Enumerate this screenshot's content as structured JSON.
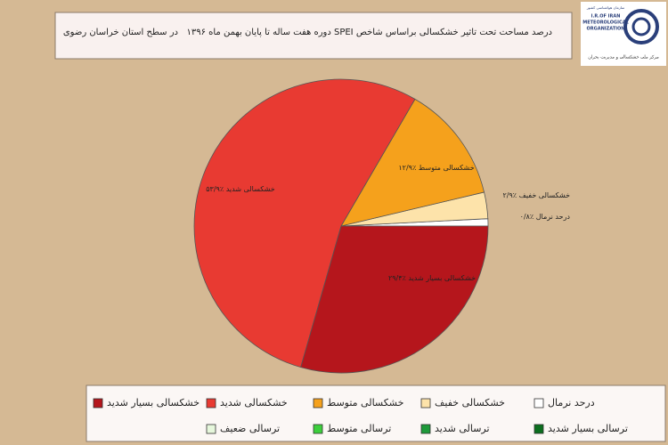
{
  "chart_data": {
    "type": "pie",
    "title": "درصد مساحت تحت تاثیر خشکسالی براساس شاخص SPEI دوره هفت ساله تا پایان بهمن ماه ۱۳۹۶",
    "subtitle": "در سطح استان خراسان رضوی",
    "categories": [
      "درحد نرمال",
      "خشکسالی خفیف",
      "خشکسالی متوسط",
      "خشکسالی شدید",
      "خشکسالی بسیار شدید"
    ],
    "values": [
      0.8,
      2.9,
      12.9,
      53.9,
      29.4
    ],
    "value_labels": [
      "٪۰/۸",
      "٪۲/۹",
      "٪۱۲/۹",
      "٪۵۳/۹",
      "٪۲۹/۴"
    ],
    "colors": [
      "#ffffff",
      "#fde3aa",
      "#f5a11c",
      "#e83a32",
      "#b5161c"
    ],
    "legend": [
      {
        "name": "درحد نرمال",
        "color": "#ffffff"
      },
      {
        "name": "خشکسالی خفیف",
        "color": "#fde3aa"
      },
      {
        "name": "خشکسالی متوسط",
        "color": "#f5a11c"
      },
      {
        "name": "خشکسالی شدید",
        "color": "#e83a32"
      },
      {
        "name": "خشکسالی بسیار شدید",
        "color": "#b5161c"
      },
      {
        "name": "ترسالی بسیار شدید",
        "color": "#0b6e1e"
      },
      {
        "name": "ترسالی شدید",
        "color": "#1e9a3a"
      },
      {
        "name": "ترسالی متوسط",
        "color": "#3ccf3c"
      },
      {
        "name": "ترسالی ضعیف",
        "color": "#e6f7dc"
      }
    ]
  },
  "logo": {
    "top": "سازمان هواشناسی کشور",
    "line1": "I.R.OF IRAN",
    "line2": "METEOROLOGICAL",
    "line3": "ORGANIZATION",
    "bottom": "مرکز ملی خشکسالی و مدیریت بحران"
  }
}
